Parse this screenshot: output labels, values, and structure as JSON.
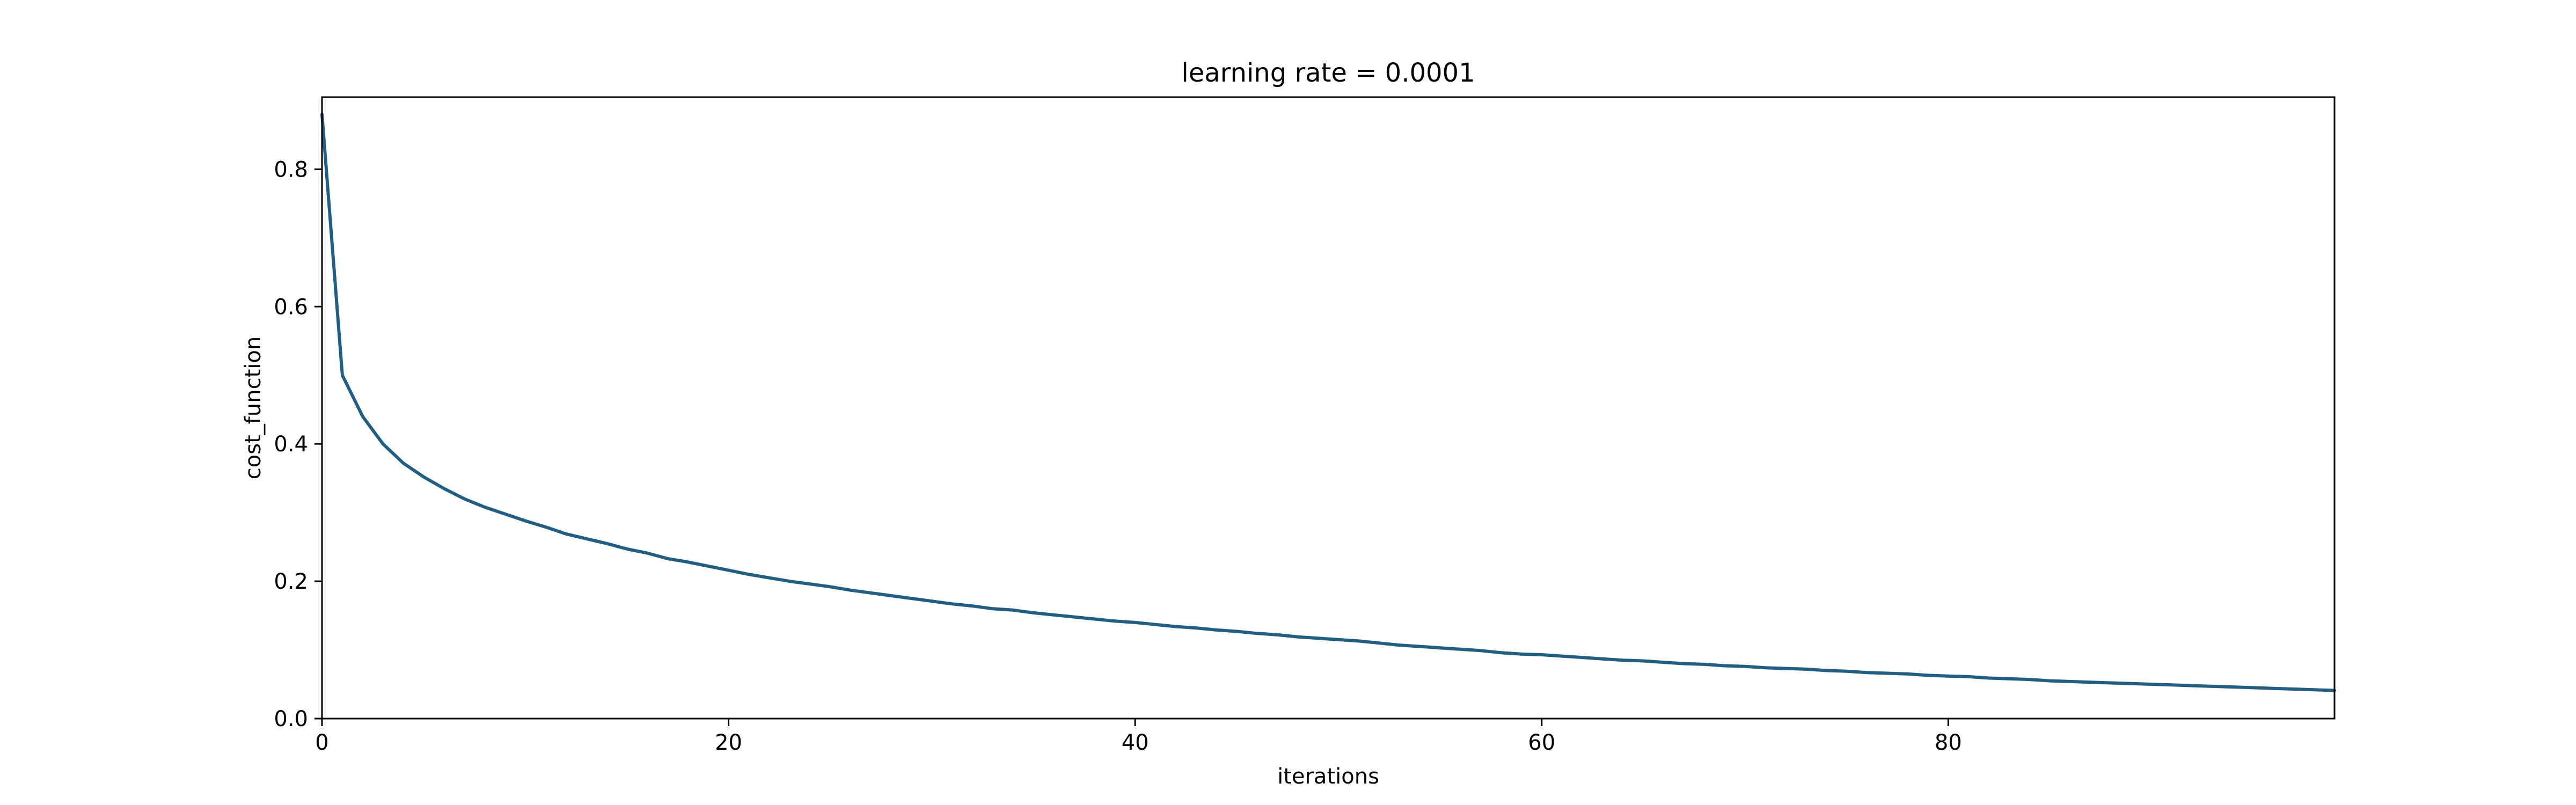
{
  "chart_data": {
    "type": "line",
    "title": "learning rate = 0.0001",
    "xlabel": "iterations",
    "ylabel": "cost_function",
    "xlim": [
      0,
      99
    ],
    "ylim": [
      0,
      0.905
    ],
    "xticks": [
      0,
      20,
      40,
      60,
      80
    ],
    "yticks": [
      0.0,
      0.2,
      0.4,
      0.6,
      0.8
    ],
    "grid": false,
    "line_color": "#1f5f86",
    "series": [
      {
        "x": [
          0,
          1,
          2,
          3,
          4,
          5,
          6,
          7,
          8,
          9,
          10,
          11,
          12,
          13,
          14,
          15,
          16,
          17,
          18,
          19,
          20,
          21,
          22,
          23,
          24,
          25,
          26,
          27,
          28,
          29,
          30,
          31,
          32,
          33,
          34,
          35,
          36,
          37,
          38,
          39,
          40,
          41,
          42,
          43,
          44,
          45,
          46,
          47,
          48,
          49,
          50,
          51,
          52,
          53,
          54,
          55,
          56,
          57,
          58,
          59,
          60,
          61,
          62,
          63,
          64,
          65,
          66,
          67,
          68,
          69,
          70,
          71,
          72,
          73,
          74,
          75,
          76,
          77,
          78,
          79,
          80,
          81,
          82,
          83,
          84,
          85,
          86,
          87,
          88,
          89,
          90,
          91,
          92,
          93,
          94,
          95,
          96,
          97,
          98,
          99
        ],
        "y": [
          0.88,
          0.5,
          0.44,
          0.4,
          0.372,
          0.352,
          0.335,
          0.32,
          0.308,
          0.298,
          0.288,
          0.279,
          0.269,
          0.262,
          0.255,
          0.247,
          0.241,
          0.233,
          0.228,
          0.222,
          0.216,
          0.21,
          0.205,
          0.2,
          0.196,
          0.192,
          0.187,
          0.183,
          0.179,
          0.175,
          0.171,
          0.167,
          0.164,
          0.16,
          0.158,
          0.154,
          0.151,
          0.148,
          0.145,
          0.142,
          0.14,
          0.137,
          0.134,
          0.132,
          0.129,
          0.127,
          0.124,
          0.122,
          0.119,
          0.117,
          0.115,
          0.113,
          0.11,
          0.107,
          0.105,
          0.103,
          0.101,
          0.099,
          0.096,
          0.094,
          0.093,
          0.091,
          0.089,
          0.087,
          0.085,
          0.084,
          0.082,
          0.08,
          0.079,
          0.077,
          0.076,
          0.074,
          0.073,
          0.072,
          0.07,
          0.069,
          0.067,
          0.066,
          0.065,
          0.063,
          0.062,
          0.061,
          0.059,
          0.058,
          0.057,
          0.055,
          0.054,
          0.053,
          0.052,
          0.051,
          0.05,
          0.049,
          0.048,
          0.047,
          0.046,
          0.045,
          0.044,
          0.043,
          0.042,
          0.041
        ]
      }
    ]
  }
}
